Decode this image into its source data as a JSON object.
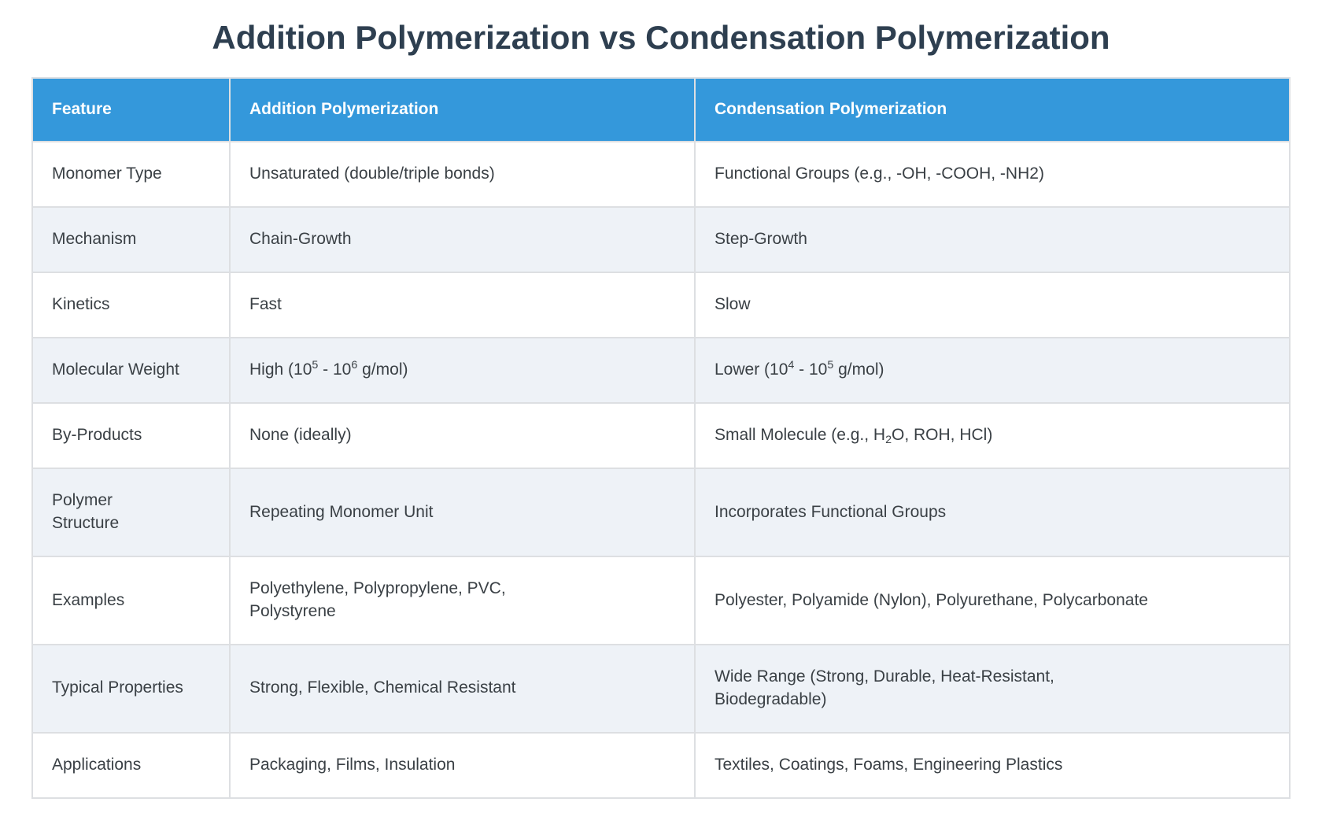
{
  "title": "Addition Polymerization vs Condensation Polymerization",
  "colors": {
    "header_bg": "#3498db",
    "header_text": "#ffffff",
    "title_text": "#2e3f50",
    "row_alt_bg": "#eef2f7",
    "grid_line": "#dddfe2",
    "body_text": "#3a4045",
    "row_bg": "#ffffff"
  },
  "table": {
    "headers": [
      "Feature",
      "Addition Polymerization",
      "Condensation Polymerization"
    ],
    "rows": [
      {
        "feature": "Monomer Type",
        "addition": "Unsaturated (double/triple bonds)",
        "condensation": "Functional Groups (e.g., -OH, -COOH, -NH2)"
      },
      {
        "feature": "Mechanism",
        "addition": "Chain-Growth",
        "condensation": "Step-Growth"
      },
      {
        "feature": "Kinetics",
        "addition": "Fast",
        "condensation": "Slow"
      },
      {
        "feature": "Molecular Weight",
        "addition": "High (10^5^ - 10^6^ g/mol)",
        "condensation": "Lower (10^4^ - 10^5^ g/mol)"
      },
      {
        "feature": "By-Products",
        "addition": "None (ideally)",
        "condensation": "Small Molecule (e.g., H~2~O, ROH, HCl)"
      },
      {
        "feature": "Polymer\nStructure",
        "addition": "Repeating Monomer Unit",
        "condensation": "Incorporates Functional Groups"
      },
      {
        "feature": "Examples",
        "addition": "Polyethylene, Polypropylene, PVC,\nPolystyrene",
        "condensation": "Polyester, Polyamide (Nylon), Polyurethane, Polycarbonate"
      },
      {
        "feature": "Typical Properties",
        "addition": "Strong, Flexible, Chemical Resistant",
        "condensation": "Wide Range (Strong, Durable, Heat-Resistant,\nBiodegradable)"
      },
      {
        "feature": "Applications",
        "addition": "Packaging, Films, Insulation",
        "condensation": "Textiles, Coatings, Foams, Engineering Plastics"
      }
    ]
  }
}
